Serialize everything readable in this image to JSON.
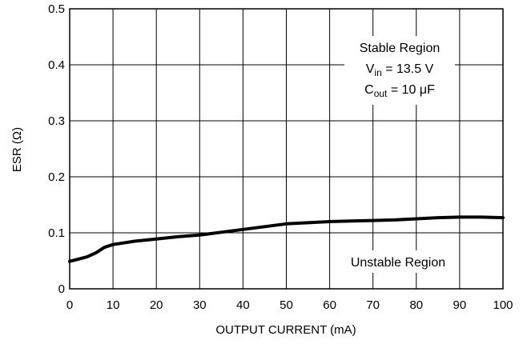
{
  "chart_data": {
    "type": "line",
    "xlabel": "OUTPUT CURRENT (mA)",
    "ylabel": "ESR (Ω)",
    "xlim": [
      0,
      100
    ],
    "ylim": [
      0,
      0.5
    ],
    "xticks": [
      0,
      10,
      20,
      30,
      40,
      50,
      60,
      70,
      80,
      90,
      100
    ],
    "yticks": [
      0,
      0.1,
      0.2,
      0.3,
      0.4,
      0.5
    ],
    "xtick_labels": [
      "0",
      "10",
      "20",
      "30",
      "40",
      "50",
      "60",
      "70",
      "80",
      "90",
      "100"
    ],
    "ytick_labels": [
      "0",
      "0.1",
      "0.2",
      "0.3",
      "0.4",
      "0.5"
    ],
    "grid": true,
    "series": [
      {
        "x": [
          0,
          2,
          4,
          6,
          8,
          10,
          15,
          20,
          25,
          30,
          35,
          40,
          45,
          50,
          55,
          60,
          65,
          70,
          75,
          80,
          85,
          90,
          95,
          100
        ],
        "y": [
          0.049,
          0.053,
          0.057,
          0.064,
          0.074,
          0.079,
          0.085,
          0.089,
          0.093,
          0.096,
          0.101,
          0.106,
          0.111,
          0.116,
          0.118,
          0.12,
          0.121,
          0.122,
          0.123,
          0.125,
          0.127,
          0.128,
          0.128,
          0.127
        ]
      }
    ],
    "annotations": {
      "stable_region": "Stable Region",
      "vin_main": "V",
      "vin_sub": "in",
      "vin_rest": " = 13.5 V",
      "cout_main": "C",
      "cout_sub": "out",
      "cout_rest": " = 10 μF",
      "unstable_region": "Unstable Region"
    }
  }
}
